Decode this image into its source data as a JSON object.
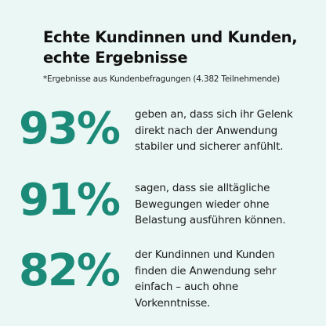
{
  "header": {
    "title_lines": [
      "Echte Kundinnen und Kunden,",
      "echte Ergebnisse"
    ],
    "note": "*Ergebnisse aus Kundenbefragungen (4.382 Teilnehmende)"
  },
  "stats": [
    {
      "figure": "93%",
      "text_lines": [
        "geben an, dass sich ihr Gelenk",
        "direkt nach der Anwendung",
        "stabiler und sicherer anfühlt."
      ]
    },
    {
      "figure": "91%",
      "text_lines": [
        "sagen, dass sie alltägliche",
        "Bewegungen wieder ohne",
        "Belastung ausführen können."
      ]
    },
    {
      "figure": "82%",
      "text_lines": [
        "der Kundinnen und Kunden",
        "finden die Anwendung sehr",
        "einfach – auch ohne",
        "Vorkenntnisse."
      ]
    }
  ]
}
